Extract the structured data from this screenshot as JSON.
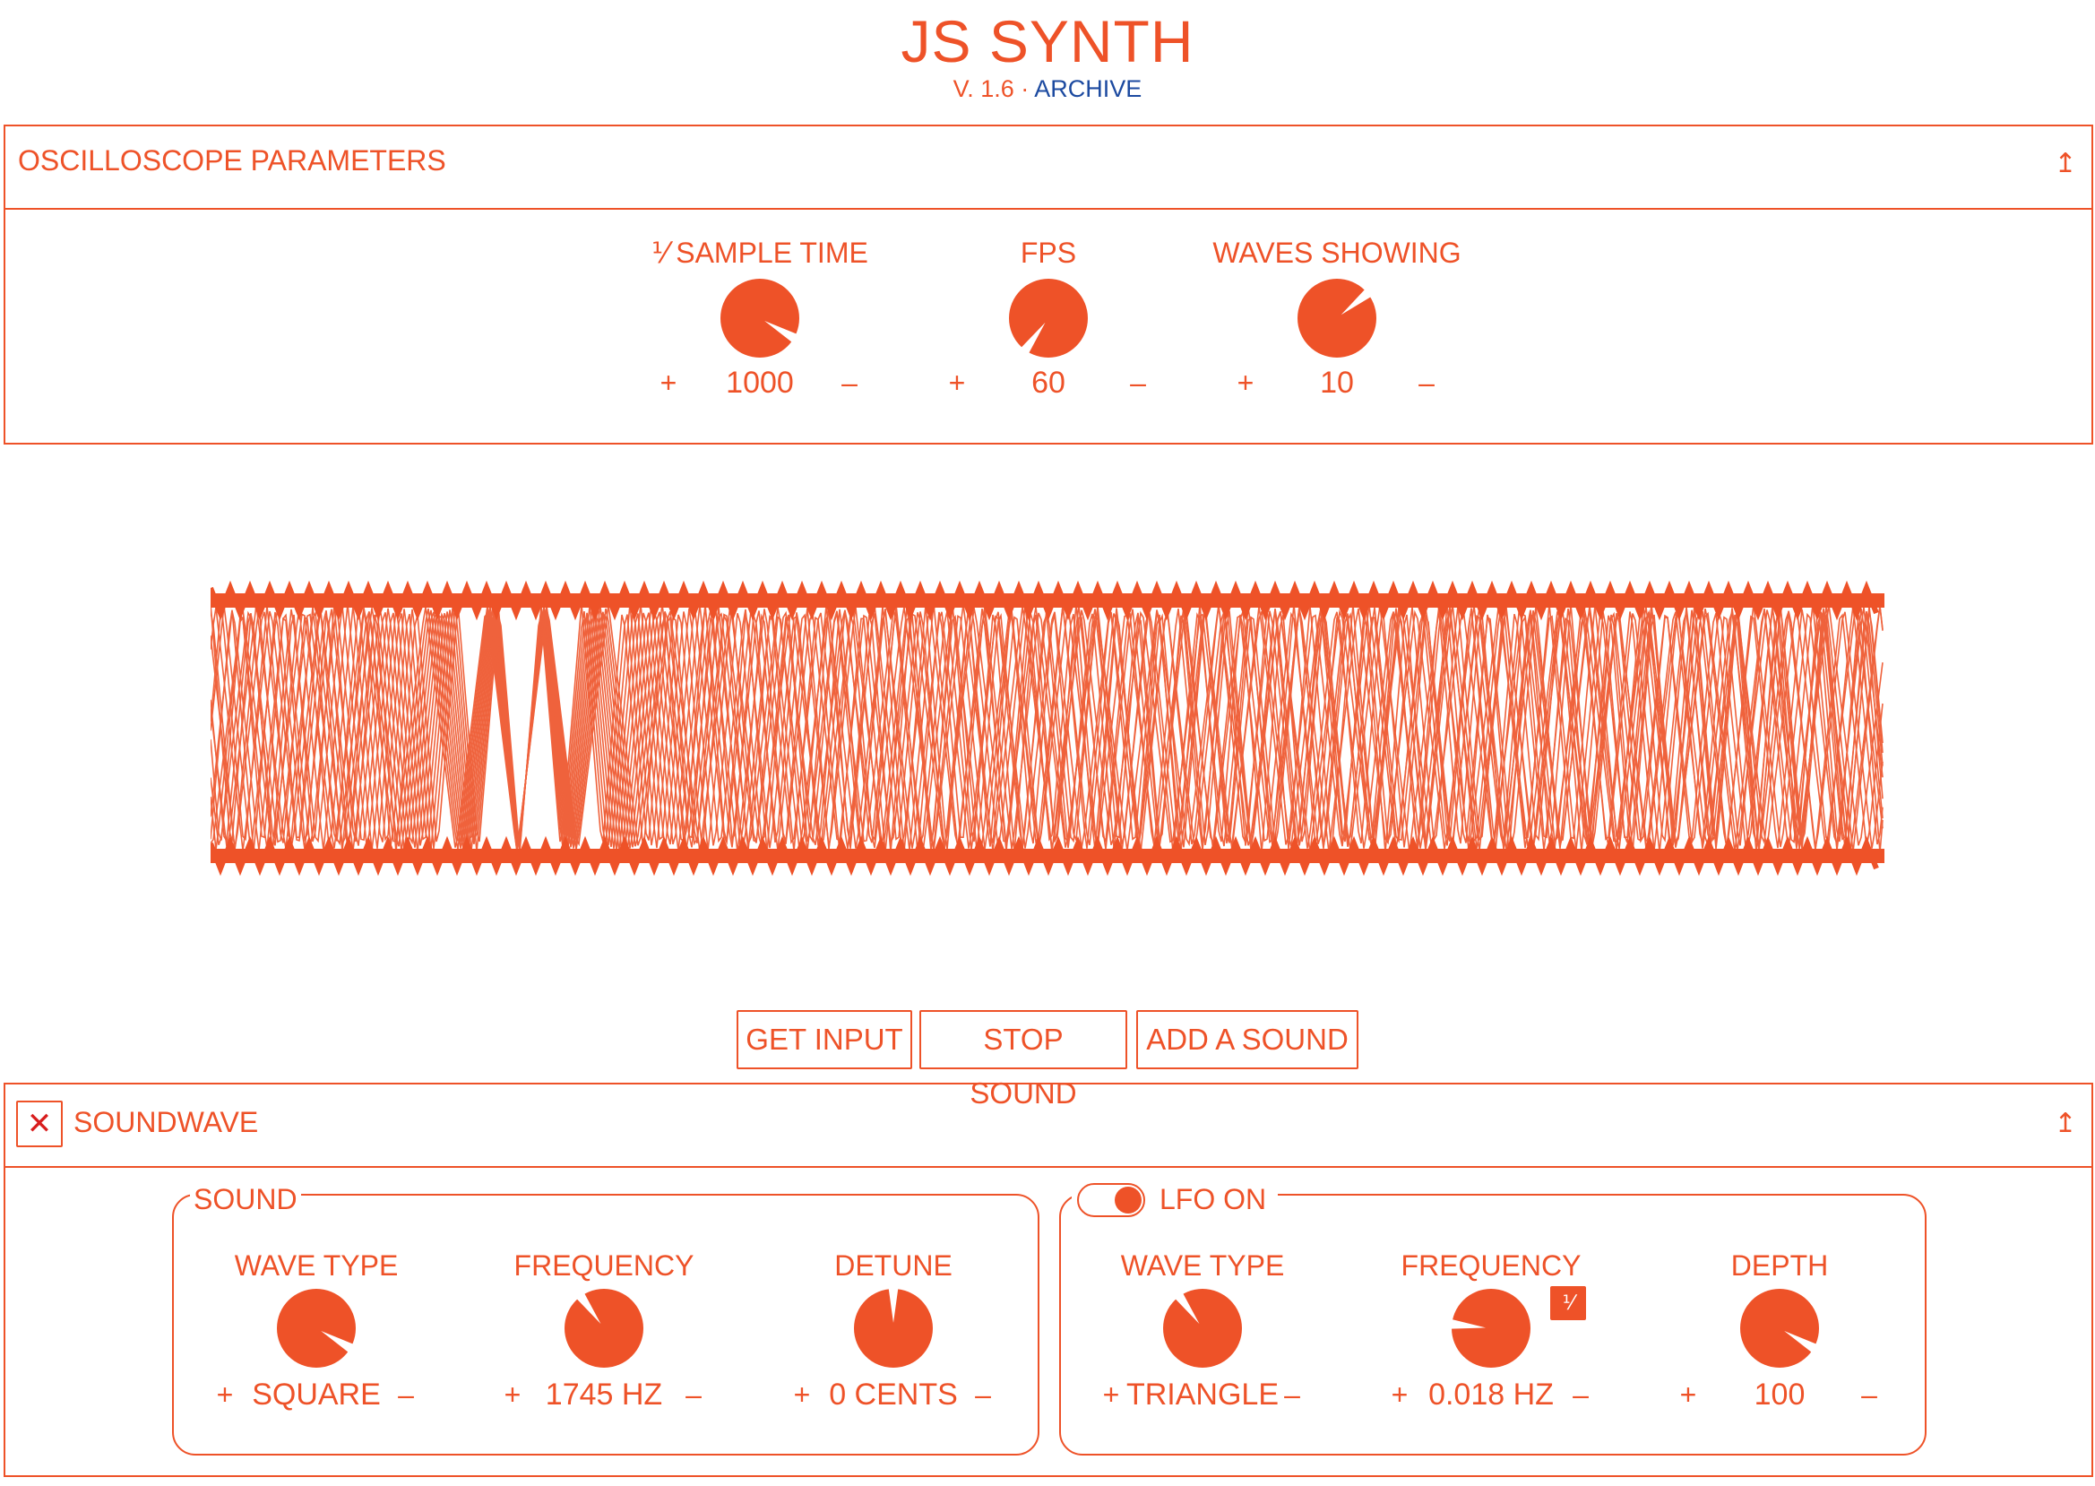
{
  "app": {
    "title": "JS SYNTH",
    "version": "V. 1.6",
    "separator": "·",
    "archive_link": "ARCHIVE"
  },
  "colors": {
    "accent": "#ee5228",
    "link": "#1c4aa0",
    "close": "#d81d1d",
    "background": "#ffffff"
  },
  "oscilloscope": {
    "header": "OSCILLOSCOPE PARAMETERS",
    "collapse_glyph": "↥",
    "collapse_icon": "collapse-up-icon",
    "controls": [
      {
        "label": "⅟ SAMPLE TIME",
        "value": "1000",
        "plus": "+",
        "minus": "–",
        "knob_level": 0.9
      },
      {
        "label": "FPS",
        "value": "60",
        "plus": "+",
        "minus": "–",
        "knob_level": 0.02
      },
      {
        "label": "WAVES SHOWING",
        "value": "10",
        "plus": "+",
        "minus": "–",
        "knob_level": 0.67
      }
    ]
  },
  "scope": {
    "type": "oscilloscope-waveform"
  },
  "buttons": {
    "get_input": "GET INPUT",
    "stop_sound": "STOP SOUND",
    "add_sound": "ADD A SOUND"
  },
  "soundwave": {
    "header": "SOUNDWAVE",
    "close_glyph": "✕",
    "close_icon": "close-icon",
    "collapse_glyph": "↥",
    "sound_group": {
      "legend": "SOUND",
      "controls": [
        {
          "label": "WAVE TYPE",
          "value": "SQUARE",
          "plus": "+",
          "minus": "–",
          "knob_level": 0.9
        },
        {
          "label": "FREQUENCY",
          "value": "1745 HZ",
          "plus": "+",
          "minus": "–",
          "knob_level": 0.38
        },
        {
          "label": "DETUNE",
          "value": "0 CENTS",
          "plus": "+",
          "minus": "–",
          "knob_level": 0.5
        }
      ]
    },
    "lfo_group": {
      "legend": "LFO ON",
      "toggle_on": true,
      "controls": [
        {
          "label": "WAVE TYPE",
          "value": "TRIANGLE",
          "plus": "+",
          "minus": "–",
          "knob_level": 0.38
        },
        {
          "label": "FREQUENCY",
          "value": "0.018 HZ",
          "plus": "+",
          "minus": "–",
          "knob_level": 0.22,
          "badge": "⅟"
        },
        {
          "label": "DEPTH",
          "value": "100",
          "plus": "+",
          "minus": "–",
          "knob_level": 0.9
        }
      ]
    }
  }
}
